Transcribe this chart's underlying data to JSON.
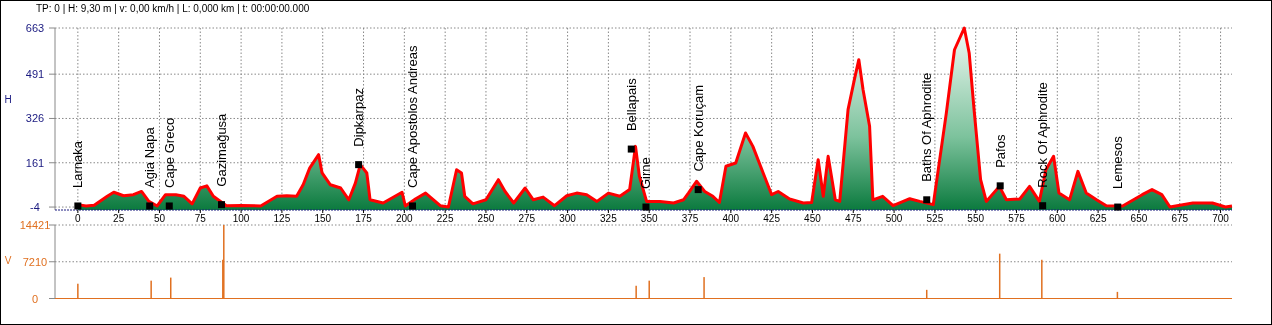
{
  "chart_data": [
    {
      "type": "area",
      "annotations": [
        "TP: 0 | H: 9,30 m | v: 0,00 km/h | L: 0,000 km | t: 00:00:00.000",
        {
          "text": "Larnaka",
          "x": 0,
          "y": 0
        },
        {
          "text": "Agia Napa",
          "x": 44,
          "y": 0
        },
        {
          "text": "Cape Greco",
          "x": 56,
          "y": 0
        },
        {
          "text": "Gazimağusa",
          "x": 88,
          "y": 5
        },
        {
          "text": "Dipkarpaz",
          "x": 172,
          "y": 154
        },
        {
          "text": "Cape Apostolos Andreas",
          "x": 205,
          "y": 0
        },
        {
          "text": "Bellapais",
          "x": 339,
          "y": 212
        },
        {
          "text": "Girne",
          "x": 348,
          "y": -4
        },
        {
          "text": "Cape Koruçam",
          "x": 380,
          "y": 61
        },
        {
          "text": "Baths Of Aphrodite",
          "x": 520,
          "y": 23
        },
        {
          "text": "Pafos",
          "x": 565,
          "y": 75
        },
        {
          "text": "Rock Of Aphrodite",
          "x": 591,
          "y": 1
        },
        {
          "text": "Lemesos",
          "x": 637,
          "y": -4
        }
      ],
      "ylabel": "H",
      "xlim": [
        -14,
        707
      ],
      "ylim": [
        -15,
        663
      ],
      "xticks": [
        0,
        25,
        50,
        75,
        100,
        125,
        150,
        175,
        200,
        225,
        250,
        275,
        300,
        325,
        350,
        375,
        400,
        425,
        450,
        475,
        500,
        525,
        550,
        575,
        600,
        625,
        650,
        675,
        700
      ],
      "yticks": [
        -4,
        161,
        326,
        491,
        663
      ],
      "grid": true,
      "series": [
        {
          "color": "#ff0000",
          "x": [
            0,
            5,
            10,
            18,
            22,
            28,
            34,
            39,
            43.5,
            48.6,
            53.7,
            60,
            65,
            70,
            75,
            79,
            83,
            91,
            100,
            112,
            122,
            128,
            134,
            138,
            142,
            147.5,
            149.6,
            154.7,
            161,
            166,
            170,
            173,
            177,
            179,
            187,
            198.6,
            200.6,
            207,
            213,
            222,
            227,
            232,
            235,
            237,
            242,
            250,
            257.6,
            261.7,
            267,
            274,
            279,
            285,
            292,
            299.5,
            305.6,
            311.7,
            318,
            325,
            332,
            338,
            341.6,
            344,
            348.4,
            356.6,
            365,
            371,
            374,
            379,
            384,
            389,
            393,
            397,
            403,
            409,
            413.5,
            419.8,
            425,
            429,
            436,
            444.4,
            449.5,
            453.5,
            456.6,
            459.6,
            464,
            466.7,
            471.8,
            475.9,
            478.4,
            481,
            485,
            487,
            493,
            499.4,
            509.6,
            515.7,
            524,
            532,
            537,
            543,
            546,
            549,
            553,
            556.5,
            564.5,
            568.8,
            577,
            583,
            589,
            593,
            597.7,
            601,
            607.5,
            612.6,
            617.7,
            624,
            630,
            640,
            652,
            658,
            664,
            669,
            683,
            695,
            703,
            707
          ],
          "values": [
            5,
            0,
            3,
            36,
            51,
            38,
            42,
            54,
            17,
            0,
            42,
            42,
            36,
            8,
            67,
            75,
            36,
            1,
            2,
            0,
            36,
            38,
            36,
            79,
            141,
            191,
            123,
            79,
            67,
            23,
            85,
            154,
            123,
            23,
            11,
            51,
            0,
            27,
            48,
            1,
            -4,
            135,
            123,
            36,
            8,
            23,
            98,
            54,
            11,
            67,
            23,
            33,
            1,
            38,
            48,
            42,
            17,
            48,
            36,
            61,
            222,
            110,
            17,
            17,
            11,
            23,
            48,
            92,
            54,
            36,
            13,
            148,
            160,
            272,
            222,
            123,
            42,
            54,
            26,
            11,
            13,
            172,
            36,
            185,
            23,
            17,
            359,
            477,
            545,
            433,
            297,
            23,
            36,
            1,
            27,
            17,
            5,
            346,
            582,
            663,
            570,
            359,
            98,
            17,
            73,
            23,
            26,
            73,
            17,
            135,
            185,
            48,
            23,
            129,
            48,
            23,
            1,
            0,
            42,
            61,
            42,
            -4,
            11,
            11,
            -4,
            0
          ]
        }
      ]
    },
    {
      "type": "bar",
      "ylabel": "V",
      "xlim": [
        -14,
        707
      ],
      "ylim": [
        0,
        14421
      ],
      "yticks": [
        0,
        7210,
        14421
      ],
      "grid": "y",
      "tick_labels": "y",
      "x": [
        0,
        44.9,
        56.9,
        88.8,
        89.4,
        342,
        350,
        383.6,
        520,
        564.7,
        590.5,
        636.8
      ],
      "series": [
        {
          "color": "#e07020",
          "values": [
            2900,
            3500,
            4100,
            7600,
            14421,
            2500,
            3500,
            4200,
            1700,
            8800,
            7600,
            1300
          ]
        }
      ]
    }
  ]
}
